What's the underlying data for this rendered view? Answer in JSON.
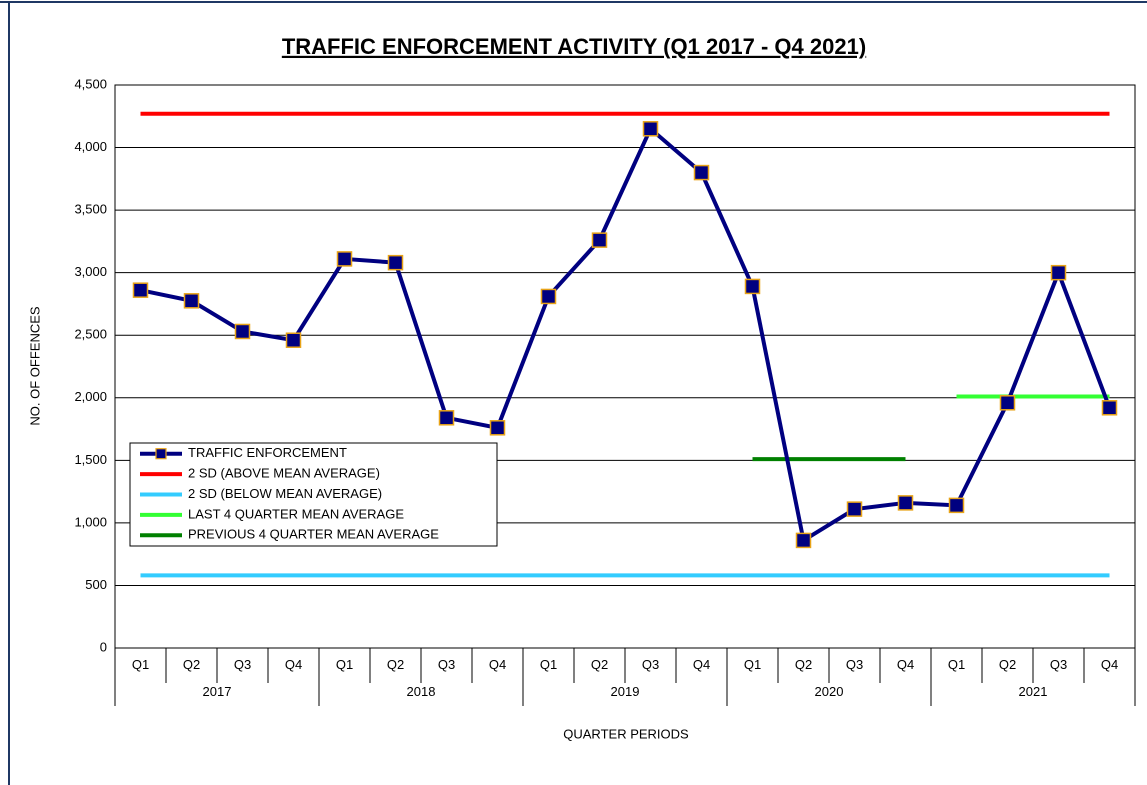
{
  "chart_data": {
    "type": "line",
    "title": "TRAFFIC ENFORCEMENT ACTIVITY (Q1 2017 - Q4 2021)",
    "y_label": "NO. OF OFFENCES",
    "x_label": "QUARTER PERIODS",
    "categories": [
      "Q1",
      "Q2",
      "Q3",
      "Q4",
      "Q1",
      "Q2",
      "Q3",
      "Q4",
      "Q1",
      "Q2",
      "Q3",
      "Q4",
      "Q1",
      "Q2",
      "Q3",
      "Q4",
      "Q1",
      "Q2",
      "Q3",
      "Q4"
    ],
    "years": [
      "2017",
      "2018",
      "2019",
      "2020",
      "2021"
    ],
    "ylim": [
      0,
      4500
    ],
    "yticks": [
      0,
      500,
      {
        "value": 1000,
        "label": "1,000"
      },
      {
        "value": 1500,
        "label": "1,500"
      },
      {
        "value": 2000,
        "label": "2,000"
      },
      {
        "value": 2500,
        "label": "2,500"
      },
      {
        "value": 3000,
        "label": "3,000"
      },
      {
        "value": 3500,
        "label": "3,500"
      },
      {
        "value": 4000,
        "label": "4,000"
      },
      {
        "value": 4500,
        "label": "4,500"
      }
    ],
    "grid": true,
    "series": [
      {
        "name": "TRAFFIC ENFORCEMENT",
        "color": "#000080",
        "marker_edge": "#e8a317",
        "marker": true,
        "values": [
          2860,
          2775,
          2530,
          2460,
          3110,
          3080,
          1840,
          1760,
          2810,
          3260,
          4150,
          3800,
          2890,
          860,
          1110,
          1160,
          1140,
          1960,
          3000,
          1920
        ]
      },
      {
        "name": "2 SD (ABOVE MEAN AVERAGE)",
        "color": "#ff0000",
        "values": [
          4270,
          4270,
          4270,
          4270,
          4270,
          4270,
          4270,
          4270,
          4270,
          4270,
          4270,
          4270,
          4270,
          4270,
          4270,
          4270,
          4270,
          4270,
          4270,
          4270
        ]
      },
      {
        "name": "2 SD (BELOW MEAN AVERAGE)",
        "color": "#33ccff",
        "values": [
          580,
          580,
          580,
          580,
          580,
          580,
          580,
          580,
          580,
          580,
          580,
          580,
          580,
          580,
          580,
          580,
          580,
          580,
          580,
          580
        ]
      },
      {
        "name": "LAST 4 QUARTER MEAN AVERAGE",
        "color": "#33ff33",
        "values": [
          null,
          null,
          null,
          null,
          null,
          null,
          null,
          null,
          null,
          null,
          null,
          null,
          null,
          null,
          null,
          null,
          2010,
          2010,
          2010,
          2010
        ]
      },
      {
        "name": "PREVIOUS 4 QUARTER MEAN AVERAGE",
        "color": "#008000",
        "values": [
          null,
          null,
          null,
          null,
          null,
          null,
          null,
          null,
          null,
          null,
          null,
          null,
          1510,
          1510,
          1510,
          1510,
          null,
          null,
          null,
          null
        ]
      }
    ],
    "legend": "lower left"
  }
}
